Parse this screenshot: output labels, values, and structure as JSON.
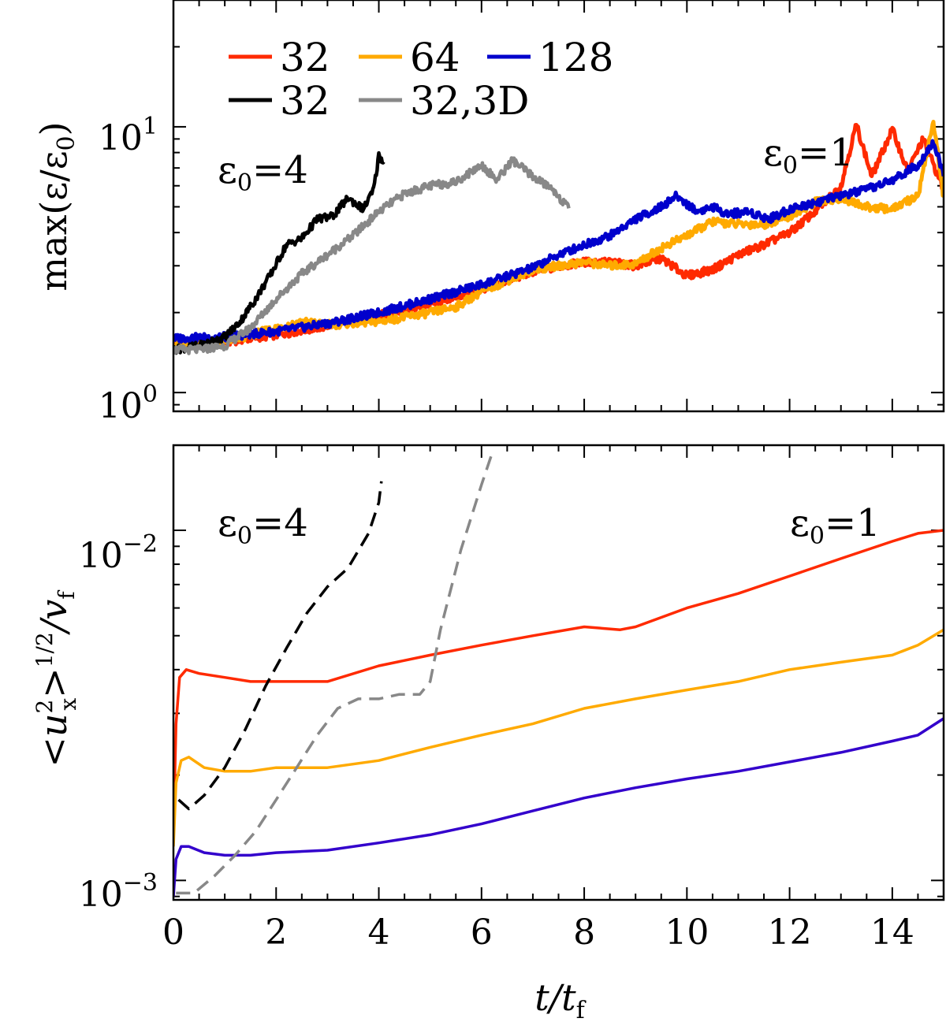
{
  "chart_data": [
    {
      "type": "line",
      "id": "top",
      "ylabel": "max(ε/ε",
      "ylabel_sub": "0",
      "ylabel_tail": ")",
      "yscale": "log",
      "xlim": [
        0,
        15
      ],
      "ylim": [
        0.85,
        30
      ],
      "yticks": [
        {
          "value": 1,
          "base": "10",
          "exp": "0"
        },
        {
          "value": 10,
          "base": "10",
          "exp": "1"
        }
      ],
      "annotations": [
        {
          "name": "eps0-4",
          "text": "ε",
          "sub": "0",
          "tail": "=4",
          "x": 0.95,
          "y": 6.4
        },
        {
          "name": "eps0-1",
          "text": "ε",
          "sub": "0",
          "tail": "=1",
          "x": 11.7,
          "y": 8.6
        }
      ],
      "legend": [
        {
          "label": "32",
          "color": "#ff2a00"
        },
        {
          "label": "64",
          "color": "#ffaa00"
        },
        {
          "label": "128",
          "color": "#0000cc"
        },
        {
          "label": "32",
          "color": "#000000"
        },
        {
          "label": "32,3D",
          "color": "#888888"
        }
      ],
      "series": [
        {
          "name": "32",
          "color": "#ff2a00",
          "width": 5,
          "x": [
            0,
            1,
            2,
            3,
            4,
            5,
            6,
            7,
            8,
            8.5,
            9,
            9.5,
            10,
            10.5,
            11,
            11.5,
            12,
            12.5,
            13,
            13.3,
            13.6,
            14,
            14.3,
            14.6,
            15
          ],
          "y": [
            1.5,
            1.55,
            1.65,
            1.78,
            1.95,
            2.15,
            2.45,
            2.85,
            3.1,
            3.1,
            3.0,
            3.2,
            2.75,
            2.9,
            3.3,
            3.6,
            4.0,
            4.8,
            6.0,
            10.2,
            6.5,
            9.8,
            6.8,
            9.0,
            5.8
          ]
        },
        {
          "name": "64",
          "color": "#ffaa00",
          "width": 5,
          "x": [
            0,
            1,
            2,
            2.5,
            3,
            4,
            5,
            5.5,
            6,
            7,
            8,
            8.5,
            9,
            9.5,
            10,
            10.5,
            11,
            11.5,
            12,
            12.5,
            13,
            13.5,
            14,
            14.5,
            14.8,
            15
          ],
          "y": [
            1.5,
            1.55,
            1.75,
            1.85,
            1.8,
            1.85,
            2.0,
            2.1,
            2.4,
            2.9,
            3.1,
            3.0,
            3.05,
            3.5,
            3.9,
            4.4,
            4.3,
            4.3,
            4.6,
            5.2,
            5.4,
            5.0,
            4.9,
            5.5,
            10.5,
            5.4
          ]
        },
        {
          "name": "128",
          "color": "#0000cc",
          "width": 5,
          "x": [
            0,
            1,
            2,
            3,
            4,
            5,
            6,
            7,
            7.5,
            8,
            8.5,
            9,
            9.5,
            9.8,
            10.2,
            10.5,
            10.8,
            11.2,
            11.6,
            12,
            12.5,
            13,
            13.5,
            14,
            14.5,
            14.8,
            15
          ],
          "y": [
            1.6,
            1.62,
            1.7,
            1.82,
            2.0,
            2.25,
            2.55,
            2.95,
            3.3,
            3.6,
            3.9,
            4.5,
            5.0,
            5.5,
            4.8,
            5.0,
            4.7,
            4.8,
            4.5,
            4.9,
            5.2,
            5.5,
            5.8,
            6.3,
            7.2,
            8.8,
            6.6
          ]
        },
        {
          "name": "32 (ε0=4)",
          "color": "#000000",
          "width": 4.5,
          "x": [
            0,
            0.5,
            1,
            1.3,
            1.6,
            1.9,
            2.2,
            2.5,
            2.8,
            3.1,
            3.4,
            3.7,
            3.9,
            4.0,
            4.1
          ],
          "y": [
            1.45,
            1.5,
            1.62,
            1.85,
            2.25,
            2.8,
            3.6,
            3.8,
            4.5,
            4.6,
            5.4,
            4.9,
            5.8,
            7.8,
            7.3
          ]
        },
        {
          "name": "32,3D",
          "color": "#888888",
          "width": 4.5,
          "x": [
            0,
            0.5,
            1,
            1.5,
            2,
            2.5,
            3,
            3.5,
            4,
            4.5,
            5,
            5.5,
            6,
            6.3,
            6.6,
            7,
            7.4,
            7.7
          ],
          "y": [
            1.45,
            1.45,
            1.5,
            1.75,
            2.25,
            2.8,
            3.3,
            3.9,
            4.8,
            5.6,
            6.0,
            6.2,
            7.2,
            6.3,
            7.5,
            6.5,
            5.8,
            4.9
          ]
        }
      ]
    },
    {
      "type": "line",
      "id": "bottom",
      "xlabel": "t/t",
      "xlabel_sub": "f",
      "ylabel_lead": "<u",
      "ylabel_sup": "2",
      "ylabel_sub": "x",
      "ylabel_mid": ">",
      "ylabel_sup2": "1/2",
      "ylabel_tail": "/v",
      "ylabel_sub2": "f",
      "yscale": "log",
      "xlim": [
        0,
        15
      ],
      "ylim": [
        0.00088,
        0.0175
      ],
      "xticks": [
        0,
        2,
        4,
        6,
        8,
        10,
        12,
        14
      ],
      "yticks": [
        {
          "value": 0.001,
          "base": "10",
          "exp": "−3"
        },
        {
          "value": 0.01,
          "base": "10",
          "exp": "−2"
        }
      ],
      "annotations": [
        {
          "name": "eps0-4",
          "text": "ε",
          "sub": "0",
          "tail": "=4",
          "x": 0.95,
          "y": 0.0098
        },
        {
          "name": "eps0-1",
          "text": "ε",
          "sub": "0",
          "tail": "=1",
          "x": 12.2,
          "y": 0.0098
        }
      ],
      "series": [
        {
          "name": "32",
          "color": "#ff2a00",
          "width": 3.5,
          "dash": "",
          "x": [
            0,
            0.05,
            0.12,
            0.25,
            0.5,
            1,
            1.5,
            2,
            3,
            4,
            5,
            6,
            7,
            8,
            8.7,
            9,
            10,
            11,
            12,
            13,
            14,
            14.5,
            15
          ],
          "y": [
            0.00135,
            0.0028,
            0.0038,
            0.004,
            0.0039,
            0.0038,
            0.0037,
            0.0037,
            0.0037,
            0.0041,
            0.0044,
            0.0047,
            0.005,
            0.0053,
            0.0052,
            0.0053,
            0.006,
            0.0066,
            0.0074,
            0.0083,
            0.0093,
            0.0098,
            0.01
          ]
        },
        {
          "name": "64",
          "color": "#ffaa00",
          "width": 3.5,
          "dash": "",
          "x": [
            0,
            0.05,
            0.15,
            0.3,
            0.6,
            1,
            1.5,
            2,
            3,
            4,
            5,
            6,
            7,
            8,
            9,
            10,
            11,
            12,
            13,
            14,
            14.5,
            15
          ],
          "y": [
            0.00125,
            0.0019,
            0.0022,
            0.00225,
            0.0021,
            0.00205,
            0.00205,
            0.0021,
            0.0021,
            0.0022,
            0.0024,
            0.0026,
            0.0028,
            0.0031,
            0.0033,
            0.0035,
            0.0037,
            0.004,
            0.0042,
            0.0044,
            0.0047,
            0.0052
          ]
        },
        {
          "name": "128",
          "color": "#3300cc",
          "width": 3.5,
          "dash": "",
          "x": [
            0,
            0.05,
            0.15,
            0.3,
            0.6,
            1,
            1.5,
            2,
            3,
            4,
            5,
            6,
            7,
            8,
            9,
            10,
            11,
            12,
            13,
            14,
            14.5,
            15
          ],
          "y": [
            0.0009,
            0.00115,
            0.00125,
            0.00125,
            0.0012,
            0.00118,
            0.00118,
            0.0012,
            0.00122,
            0.00128,
            0.00135,
            0.00145,
            0.00158,
            0.00172,
            0.00184,
            0.00195,
            0.00205,
            0.00218,
            0.00232,
            0.0025,
            0.0026,
            0.0029
          ]
        },
        {
          "name": "32 (ε0=4)",
          "color": "#000000",
          "width": 3.5,
          "dash": "18,10",
          "x": [
            0.1,
            0.3,
            0.6,
            1,
            1.4,
            1.8,
            2.2,
            2.6,
            3,
            3.4,
            3.8,
            4.0,
            4.05
          ],
          "y": [
            0.0017,
            0.0016,
            0.00175,
            0.0021,
            0.0027,
            0.0036,
            0.0046,
            0.0058,
            0.0069,
            0.0078,
            0.0098,
            0.012,
            0.0138
          ]
        },
        {
          "name": "32,3D",
          "color": "#888888",
          "width": 3.5,
          "dash": "18,10",
          "x": [
            0.05,
            0.4,
            0.8,
            1.2,
            1.6,
            2,
            2.4,
            2.8,
            3.2,
            3.6,
            4,
            4.4,
            4.8,
            5.0,
            5.2,
            5.6,
            6.0,
            6.2
          ],
          "y": [
            0.00092,
            0.00092,
            0.00103,
            0.00118,
            0.00138,
            0.0017,
            0.0021,
            0.0026,
            0.0031,
            0.0033,
            0.0033,
            0.0034,
            0.0034,
            0.0037,
            0.0052,
            0.0088,
            0.0135,
            0.0165
          ]
        }
      ]
    }
  ]
}
